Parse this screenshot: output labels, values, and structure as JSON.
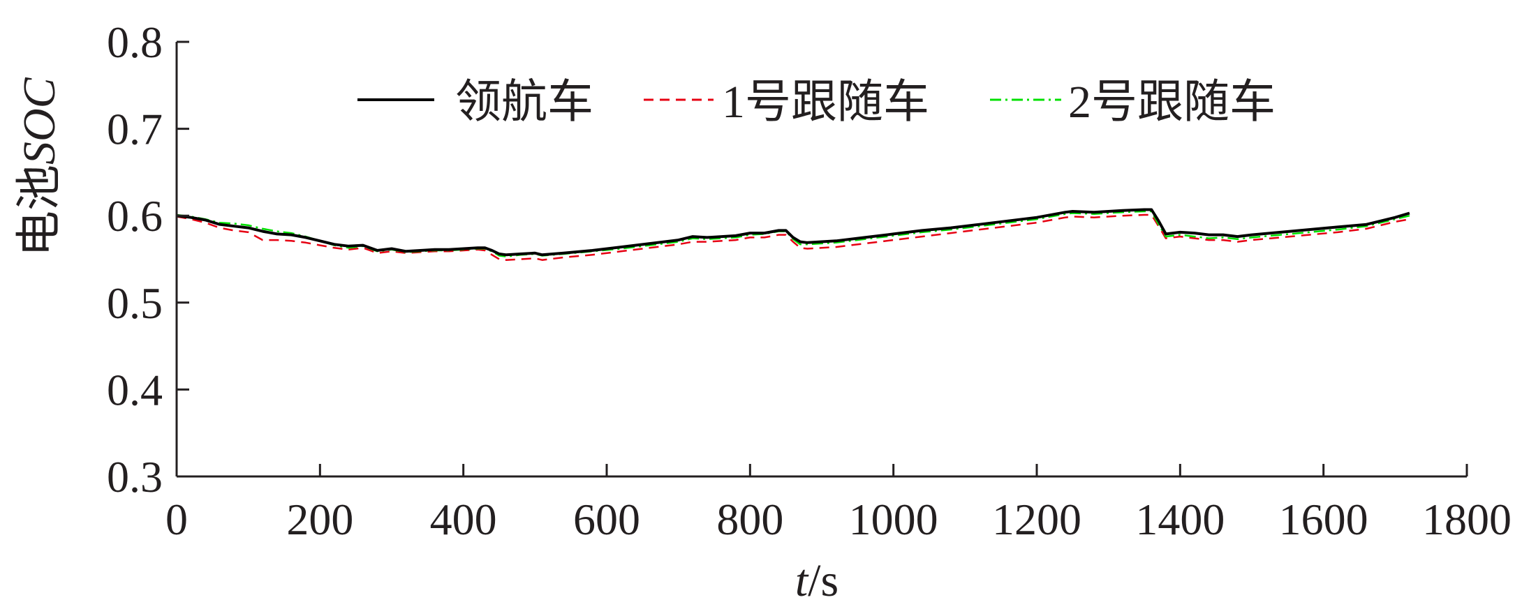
{
  "chart_data": {
    "type": "line",
    "xlabel_var": "t",
    "xlabel_unit": "/s",
    "ylabel_prefix": "电池",
    "ylabel_var": "SOC",
    "xlim": [
      0,
      1800
    ],
    "ylim": [
      0.3,
      0.8
    ],
    "xticks": [
      0,
      200,
      400,
      600,
      800,
      1000,
      1200,
      1400,
      1600,
      1800
    ],
    "xtick_labels": [
      "0",
      "200",
      "400",
      "600",
      "800",
      "1000",
      "1200",
      "1400",
      "1600",
      "1800"
    ],
    "yticks": [
      0.3,
      0.4,
      0.5,
      0.6,
      0.7,
      0.8
    ],
    "ytick_labels": [
      "0.3",
      "0.4",
      "0.5",
      "0.6",
      "0.7",
      "0.8"
    ],
    "grid": false,
    "legend_position": "top",
    "series": [
      {
        "name": "领航车",
        "color": "#000000",
        "style": "solid",
        "x": [
          0,
          20,
          40,
          60,
          80,
          100,
          120,
          140,
          160,
          180,
          200,
          220,
          240,
          260,
          280,
          300,
          320,
          340,
          360,
          380,
          400,
          420,
          430,
          440,
          450,
          460,
          480,
          500,
          510,
          540,
          580,
          620,
          660,
          700,
          720,
          740,
          780,
          800,
          820,
          840,
          850,
          860,
          870,
          880,
          920,
          960,
          1000,
          1040,
          1080,
          1120,
          1160,
          1200,
          1240,
          1250,
          1280,
          1320,
          1350,
          1360,
          1370,
          1380,
          1390,
          1400,
          1420,
          1440,
          1460,
          1480,
          1500,
          1540,
          1580,
          1620,
          1660,
          1680,
          1700,
          1720
        ],
        "y": [
          0.6,
          0.598,
          0.595,
          0.59,
          0.588,
          0.586,
          0.582,
          0.579,
          0.578,
          0.575,
          0.571,
          0.567,
          0.565,
          0.566,
          0.56,
          0.562,
          0.559,
          0.56,
          0.561,
          0.561,
          0.562,
          0.563,
          0.563,
          0.56,
          0.556,
          0.555,
          0.556,
          0.557,
          0.555,
          0.557,
          0.56,
          0.564,
          0.568,
          0.572,
          0.576,
          0.575,
          0.577,
          0.58,
          0.58,
          0.583,
          0.583,
          0.575,
          0.57,
          0.569,
          0.571,
          0.575,
          0.579,
          0.583,
          0.586,
          0.59,
          0.594,
          0.598,
          0.604,
          0.605,
          0.604,
          0.606,
          0.607,
          0.607,
          0.594,
          0.579,
          0.58,
          0.581,
          0.58,
          0.578,
          0.578,
          0.576,
          0.578,
          0.581,
          0.584,
          0.587,
          0.59,
          0.594,
          0.598,
          0.603
        ]
      },
      {
        "name": "1号跟随车",
        "color": "#e60012",
        "style": "dashed",
        "x": [
          0,
          20,
          40,
          60,
          80,
          100,
          120,
          140,
          160,
          180,
          200,
          220,
          240,
          260,
          280,
          300,
          320,
          340,
          360,
          380,
          400,
          420,
          430,
          440,
          450,
          460,
          480,
          500,
          510,
          540,
          580,
          620,
          660,
          700,
          720,
          740,
          780,
          800,
          820,
          840,
          850,
          860,
          870,
          880,
          920,
          960,
          1000,
          1040,
          1080,
          1120,
          1160,
          1200,
          1240,
          1250,
          1280,
          1320,
          1350,
          1360,
          1370,
          1380,
          1390,
          1400,
          1420,
          1440,
          1460,
          1480,
          1500,
          1540,
          1580,
          1620,
          1660,
          1680,
          1700,
          1720
        ],
        "y": [
          0.599,
          0.596,
          0.592,
          0.586,
          0.583,
          0.581,
          0.572,
          0.572,
          0.571,
          0.569,
          0.566,
          0.563,
          0.561,
          0.563,
          0.557,
          0.559,
          0.557,
          0.558,
          0.559,
          0.559,
          0.56,
          0.561,
          0.56,
          0.555,
          0.55,
          0.549,
          0.55,
          0.551,
          0.549,
          0.552,
          0.555,
          0.559,
          0.563,
          0.567,
          0.57,
          0.57,
          0.572,
          0.575,
          0.575,
          0.578,
          0.578,
          0.57,
          0.563,
          0.562,
          0.564,
          0.568,
          0.572,
          0.576,
          0.58,
          0.584,
          0.588,
          0.592,
          0.598,
          0.599,
          0.598,
          0.6,
          0.601,
          0.601,
          0.588,
          0.574,
          0.575,
          0.576,
          0.574,
          0.572,
          0.572,
          0.57,
          0.572,
          0.575,
          0.578,
          0.581,
          0.585,
          0.589,
          0.593,
          0.596
        ]
      },
      {
        "name": "2号跟随车",
        "color": "#00e000",
        "style": "dashdot",
        "x": [
          0,
          20,
          40,
          60,
          80,
          100,
          120,
          140,
          160,
          180,
          200,
          220,
          240,
          260,
          280,
          300,
          320,
          340,
          360,
          380,
          400,
          420,
          430,
          440,
          450,
          460,
          480,
          500,
          510,
          540,
          580,
          620,
          660,
          700,
          720,
          740,
          780,
          800,
          820,
          840,
          850,
          860,
          870,
          880,
          920,
          960,
          1000,
          1040,
          1080,
          1120,
          1160,
          1200,
          1240,
          1250,
          1280,
          1320,
          1350,
          1360,
          1370,
          1380,
          1390,
          1400,
          1420,
          1440,
          1460,
          1480,
          1500,
          1540,
          1580,
          1620,
          1660,
          1680,
          1700,
          1720
        ],
        "y": [
          0.601,
          0.599,
          0.596,
          0.592,
          0.591,
          0.589,
          0.585,
          0.582,
          0.58,
          0.576,
          0.571,
          0.566,
          0.563,
          0.565,
          0.559,
          0.561,
          0.558,
          0.559,
          0.56,
          0.56,
          0.561,
          0.562,
          0.562,
          0.559,
          0.554,
          0.553,
          0.555,
          0.556,
          0.554,
          0.556,
          0.559,
          0.562,
          0.566,
          0.57,
          0.574,
          0.573,
          0.575,
          0.578,
          0.579,
          0.582,
          0.582,
          0.573,
          0.567,
          0.567,
          0.569,
          0.573,
          0.577,
          0.581,
          0.584,
          0.588,
          0.592,
          0.596,
          0.602,
          0.603,
          0.602,
          0.604,
          0.605,
          0.605,
          0.59,
          0.576,
          0.577,
          0.578,
          0.576,
          0.574,
          0.575,
          0.573,
          0.575,
          0.578,
          0.581,
          0.584,
          0.588,
          0.592,
          0.596,
          0.6
        ]
      }
    ]
  }
}
